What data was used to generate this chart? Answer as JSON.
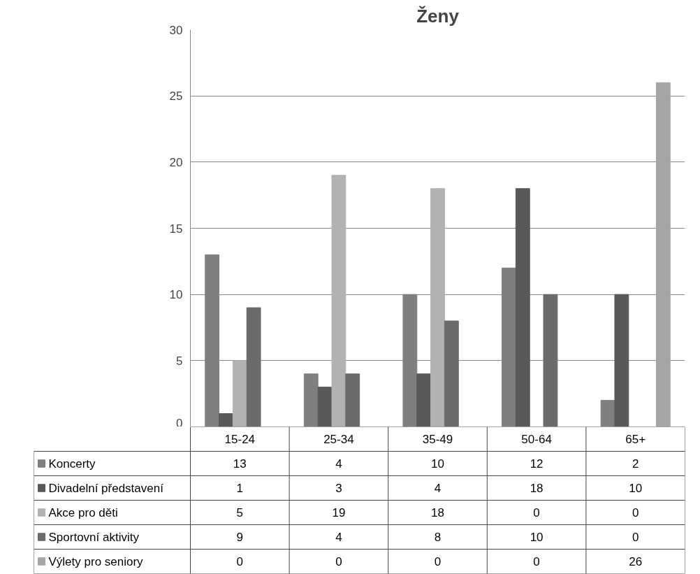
{
  "chart_data": {
    "type": "bar",
    "title": "Ženy",
    "categories": [
      "15-24",
      "25-34",
      "35-49",
      "50-64",
      "65+"
    ],
    "series": [
      {
        "name": "Koncerty",
        "color": "#7f7f7f",
        "values": [
          13,
          4,
          10,
          12,
          2
        ]
      },
      {
        "name": "Divadelní představení",
        "color": "#595959",
        "values": [
          1,
          3,
          4,
          18,
          10
        ]
      },
      {
        "name": "Akce pro děti",
        "color": "#b2b2b2",
        "values": [
          5,
          19,
          18,
          0,
          0
        ]
      },
      {
        "name": "Sportovní aktivity",
        "color": "#6b6b6b",
        "values": [
          9,
          4,
          8,
          10,
          0
        ]
      },
      {
        "name": "Výlety pro seniory",
        "color": "#a5a5a5",
        "values": [
          0,
          0,
          0,
          0,
          26
        ]
      }
    ],
    "ylim": [
      0,
      30
    ],
    "yticks": [
      0,
      5,
      10,
      15,
      20,
      25,
      30
    ],
    "grid": "y",
    "legend": "bottom",
    "data_labels": true
  }
}
